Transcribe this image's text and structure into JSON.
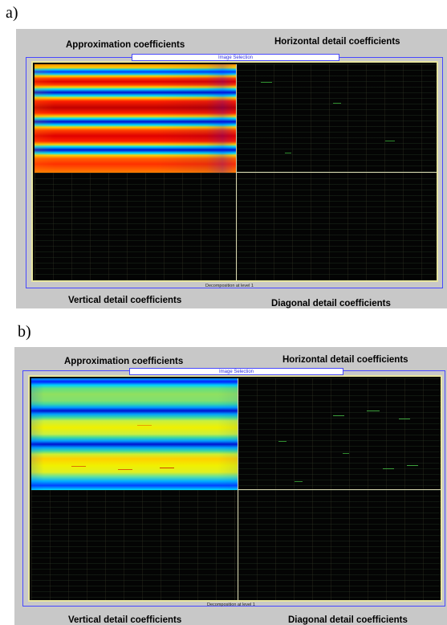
{
  "figures": [
    {
      "label": "a)",
      "titles": {
        "approximation": "Approximation coefficients",
        "horizontal": "Horizontal detail coefficients",
        "vertical": "Vertical detail coefficients",
        "diagonal": "Diagonal detail coefficients"
      },
      "selection_label": "Image Selection",
      "decomposition_label": "Decomposition at level 1",
      "colormap": "jet"
    },
    {
      "label": "b)",
      "titles": {
        "approximation": "Approximation coefficients",
        "horizontal": "Horizontal detail coefficients",
        "vertical": "Vertical detail coefficients",
        "diagonal": "Diagonal detail coefficients"
      },
      "selection_label": "Image Selection",
      "decomposition_label": "Decomposition at level 1",
      "colormap": "jet"
    }
  ],
  "colors": {
    "panel_background": "#c8c8c8",
    "frame_border": "#4848ff",
    "canvas_border": "#e8e6a0",
    "detail_background": "#040404"
  }
}
